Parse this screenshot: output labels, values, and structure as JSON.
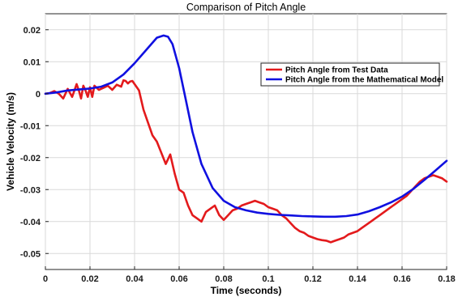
{
  "chart_data": {
    "type": "line",
    "title": "Comparison of Pitch Angle",
    "xlabel": "Time (seconds)",
    "ylabel": "Vehicle Velocity (m/s)",
    "xlim": [
      0,
      0.18
    ],
    "ylim": [
      -0.055,
      0.025
    ],
    "xticks": [
      0,
      0.02,
      0.04,
      0.06,
      0.08,
      0.1,
      0.12,
      0.14,
      0.16,
      0.18
    ],
    "xtick_labels": [
      "0",
      "0.02",
      "0.04",
      "0.06",
      "0.08",
      "0.1",
      "0.12",
      "0.14",
      "0.16",
      "0.18"
    ],
    "yticks": [
      0.02,
      0.01,
      0,
      -0.01,
      -0.02,
      -0.03,
      -0.04,
      -0.05
    ],
    "ytick_labels": [
      "0.02",
      "0.01",
      "0",
      "-0.01",
      "-0.02",
      "-0.03",
      "-0.04",
      "-0.05"
    ],
    "grid": true,
    "legend_position": "top-right",
    "series": [
      {
        "name": "Pitch Angle from Test Data",
        "color": "#e31a1c",
        "x": [
          0,
          0.002,
          0.004,
          0.006,
          0.008,
          0.01,
          0.012,
          0.013,
          0.014,
          0.015,
          0.016,
          0.017,
          0.018,
          0.019,
          0.02,
          0.021,
          0.022,
          0.024,
          0.026,
          0.028,
          0.03,
          0.032,
          0.034,
          0.035,
          0.036,
          0.037,
          0.038,
          0.039,
          0.04,
          0.042,
          0.044,
          0.046,
          0.048,
          0.05,
          0.052,
          0.054,
          0.056,
          0.058,
          0.06,
          0.062,
          0.064,
          0.066,
          0.068,
          0.07,
          0.072,
          0.074,
          0.076,
          0.078,
          0.08,
          0.082,
          0.084,
          0.086,
          0.088,
          0.09,
          0.092,
          0.094,
          0.096,
          0.098,
          0.1,
          0.102,
          0.104,
          0.106,
          0.108,
          0.11,
          0.112,
          0.114,
          0.116,
          0.118,
          0.12,
          0.122,
          0.124,
          0.126,
          0.128,
          0.13,
          0.132,
          0.134,
          0.136,
          0.138,
          0.14,
          0.142,
          0.144,
          0.146,
          0.148,
          0.15,
          0.152,
          0.154,
          0.156,
          0.158,
          0.16,
          0.162,
          0.164,
          0.166,
          0.168,
          0.17,
          0.172,
          0.174,
          0.176,
          0.178,
          0.18
        ],
        "y": [
          0,
          0.0002,
          0.0008,
          0,
          -0.0015,
          0.0015,
          -0.001,
          0.001,
          0.003,
          0.001,
          -0.0015,
          0.0025,
          0.001,
          -0.001,
          0.002,
          -0.001,
          0.0025,
          0.0012,
          0.0018,
          0.0025,
          0.0012,
          0.0028,
          0.0022,
          0.0042,
          0.004,
          0.0032,
          0.0038,
          0.004,
          0.003,
          0.001,
          -0.005,
          -0.009,
          -0.013,
          -0.015,
          -0.0185,
          -0.022,
          -0.019,
          -0.025,
          -0.03,
          -0.031,
          -0.035,
          -0.038,
          -0.039,
          -0.04,
          -0.037,
          -0.036,
          -0.035,
          -0.038,
          -0.0395,
          -0.038,
          -0.0365,
          -0.036,
          -0.035,
          -0.0345,
          -0.034,
          -0.0335,
          -0.034,
          -0.0345,
          -0.0355,
          -0.036,
          -0.0365,
          -0.038,
          -0.039,
          -0.0405,
          -0.042,
          -0.043,
          -0.0435,
          -0.0445,
          -0.045,
          -0.0455,
          -0.0458,
          -0.046,
          -0.0465,
          -0.046,
          -0.0455,
          -0.045,
          -0.044,
          -0.0435,
          -0.043,
          -0.042,
          -0.041,
          -0.04,
          -0.039,
          -0.038,
          -0.037,
          -0.036,
          -0.035,
          -0.034,
          -0.033,
          -0.032,
          -0.0305,
          -0.029,
          -0.0275,
          -0.0265,
          -0.026,
          -0.0255,
          -0.026,
          -0.0265,
          -0.0275
        ],
        "y_note": ""
      },
      {
        "name": "Pitch Angle from the Mathematical Model",
        "color": "#1010e0",
        "x": [
          0,
          0.005,
          0.01,
          0.015,
          0.02,
          0.025,
          0.03,
          0.035,
          0.04,
          0.045,
          0.05,
          0.053,
          0.055,
          0.057,
          0.06,
          0.063,
          0.066,
          0.07,
          0.075,
          0.08,
          0.085,
          0.09,
          0.095,
          0.1,
          0.105,
          0.11,
          0.115,
          0.12,
          0.125,
          0.13,
          0.135,
          0.14,
          0.145,
          0.15,
          0.155,
          0.16,
          0.165,
          0.17,
          0.175,
          0.18
        ],
        "y": [
          0,
          0.0004,
          0.001,
          0.0013,
          0.0016,
          0.0022,
          0.0035,
          0.006,
          0.0095,
          0.0135,
          0.0175,
          0.0182,
          0.0178,
          0.0155,
          0.008,
          -0.002,
          -0.012,
          -0.022,
          -0.0295,
          -0.0335,
          -0.0355,
          -0.0365,
          -0.0372,
          -0.0376,
          -0.0379,
          -0.0381,
          -0.0383,
          -0.0384,
          -0.0385,
          -0.0385,
          -0.0383,
          -0.0378,
          -0.0368,
          -0.0355,
          -0.034,
          -0.0322,
          -0.0298,
          -0.027,
          -0.024,
          -0.021
        ]
      }
    ]
  }
}
